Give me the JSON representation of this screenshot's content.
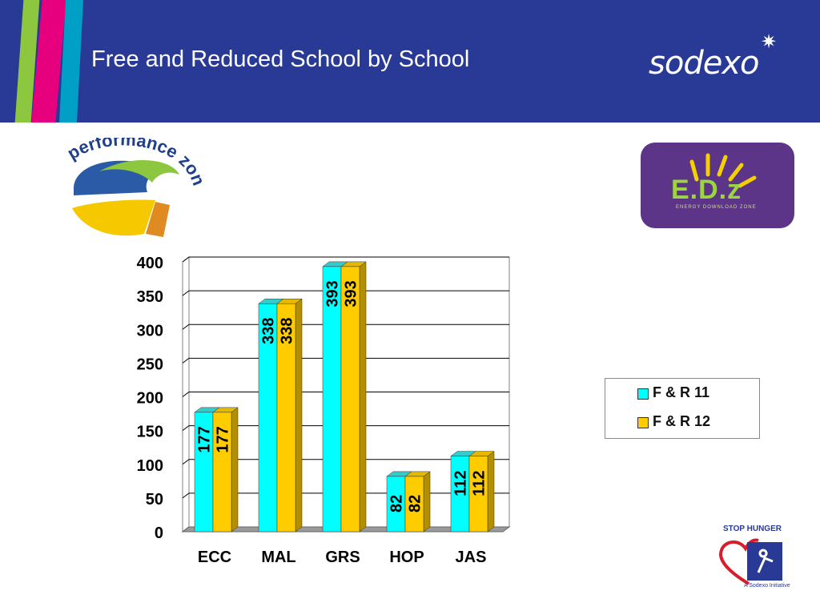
{
  "slide": {
    "title": "Free and Reduced School by School",
    "brand": "sodexo",
    "badge_left_text": "performance zone",
    "badge_right_text": "E.D.z",
    "badge_right_subtext": "ENERGY DOWNLOAD ZONE",
    "stop_hunger_title": "STOP HUNGER",
    "stop_hunger_sub": "A Sodexo Initiative"
  },
  "colors": {
    "header_bg": "#283a96",
    "series1": "#00ffff",
    "series2": "#ffcc00",
    "stripe_green": "#8dc63f",
    "stripe_pink": "#e6007e",
    "stripe_cyan": "#00a0c6"
  },
  "chart_data": {
    "type": "bar",
    "categories": [
      "ECC",
      "MAL",
      "GRS",
      "HOP",
      "JAS"
    ],
    "series": [
      {
        "name": "F & R 11",
        "values": [
          177,
          338,
          393,
          82,
          112
        ]
      },
      {
        "name": "F & R 12",
        "values": [
          177,
          338,
          393,
          82,
          112
        ]
      }
    ],
    "yticks": [
      "0",
      "50",
      "100",
      "150",
      "200",
      "250",
      "300",
      "350",
      "400"
    ],
    "ylim": [
      0,
      400
    ],
    "grid": true,
    "legend_position": "right",
    "data_labels": true,
    "style": "3d-bar"
  }
}
